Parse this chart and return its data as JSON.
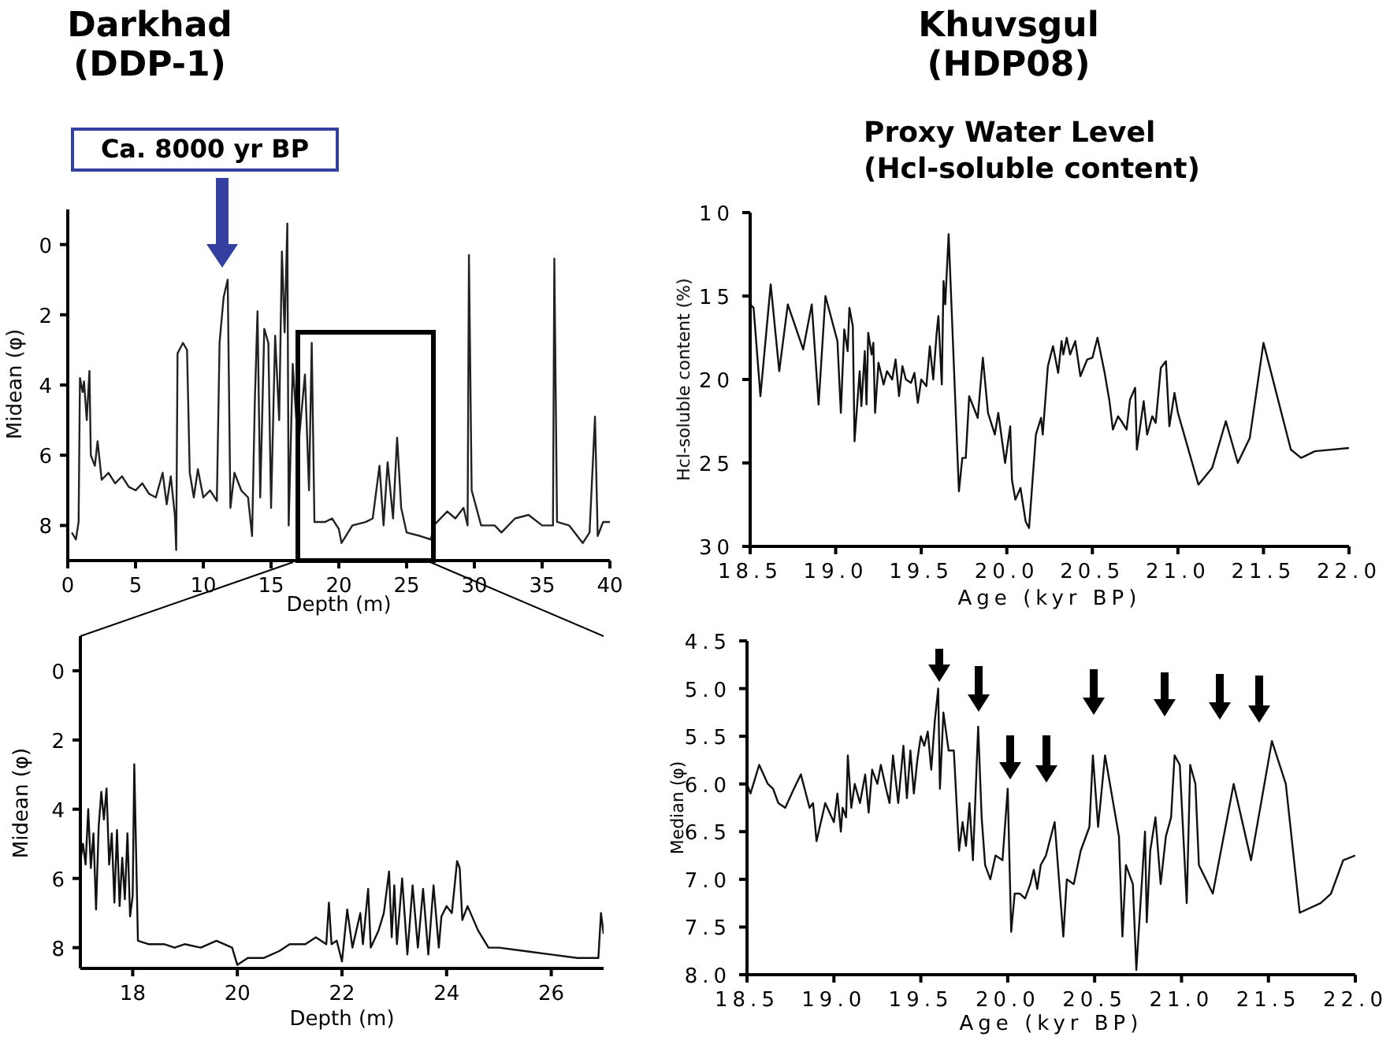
{
  "chart_data": [
    {
      "type": "line",
      "title": "Darkhad\n(DDP-1)",
      "xlabel": "Depth (m)",
      "ylabel": "Midean (φ)",
      "annotations": [
        "Ca. 8000 yr BP"
      ],
      "xlim": [
        0,
        40
      ],
      "xticks": [
        0,
        5,
        10,
        15,
        20,
        25,
        30,
        35,
        40
      ],
      "ylim": [
        9,
        -1
      ],
      "yticks": [
        0,
        2,
        4,
        6,
        8
      ],
      "color": "#222222",
      "x": [
        0.3,
        0.6,
        0.8,
        0.9,
        1.1,
        1.2,
        1.4,
        1.6,
        1.7,
        2.0,
        2.2,
        2.5,
        3,
        3.5,
        4,
        4.5,
        5,
        5.5,
        6,
        6.5,
        7,
        7.3,
        7.6,
        7.9,
        8.0,
        8.1,
        8.5,
        8.8,
        9.0,
        9.3,
        9.6,
        10,
        10.5,
        11,
        11.2,
        11.5,
        11.8,
        12.0,
        12.3,
        12.8,
        13.3,
        13.6,
        13.8,
        14.0,
        14.2,
        14.5,
        14.8,
        15.0,
        15.3,
        15.6,
        15.8,
        16.0,
        16.2,
        16.3,
        16.6,
        17.0,
        17.5,
        17.8,
        18.0,
        18.2,
        19,
        19.5,
        20,
        20.2,
        21,
        22,
        22.5,
        23,
        23.3,
        23.6,
        24,
        24.3,
        24.6,
        25,
        26,
        26.8,
        27,
        28,
        28.6,
        29.2,
        29.5,
        29.6,
        29.8,
        30.5,
        31.5,
        32,
        33,
        34,
        35,
        35.8,
        35.9,
        36.1,
        37,
        38,
        38.5,
        38.9,
        39.1,
        39.5,
        40
      ],
      "values": [
        8.2,
        8.4,
        7.9,
        3.8,
        4.2,
        3.9,
        5.0,
        3.6,
        6.0,
        6.3,
        5.6,
        6.7,
        6.5,
        6.8,
        6.6,
        6.9,
        7.0,
        6.8,
        7.1,
        7.2,
        6.5,
        7.4,
        6.6,
        7.7,
        8.7,
        3.1,
        2.8,
        3.0,
        6.5,
        7.2,
        6.4,
        7.2,
        7.0,
        7.3,
        2.8,
        1.5,
        1.0,
        7.5,
        6.5,
        7.0,
        7.2,
        8.3,
        4.5,
        1.9,
        7.2,
        2.4,
        2.8,
        7.5,
        2.6,
        5.0,
        0.2,
        2.5,
        -0.6,
        8.0,
        3.4,
        5.8,
        3.7,
        7.0,
        2.8,
        7.9,
        7.9,
        7.8,
        8.1,
        8.5,
        8.0,
        7.9,
        7.8,
        6.3,
        8.0,
        6.2,
        7.8,
        5.5,
        7.5,
        8.2,
        8.3,
        8.4,
        8.0,
        7.6,
        7.8,
        7.5,
        8.0,
        0.3,
        7.0,
        8.0,
        8.0,
        8.2,
        7.8,
        7.7,
        8.0,
        8.0,
        0.4,
        7.9,
        8.0,
        8.5,
        8.2,
        4.9,
        8.3,
        7.9,
        7.9
      ]
    },
    {
      "type": "line",
      "title": "Khuvsgul\n(HDP08)",
      "subtitle": "Proxy Water Level\n(Hcl-soluble content)",
      "xlabel": "Age (kyr BP)",
      "ylabel": "Hcl-soluble content (%)",
      "xlim": [
        18.5,
        22
      ],
      "xticks": [
        {
          "value": 18.5,
          "label": "18.5"
        },
        {
          "value": 19,
          "label": "19.0"
        },
        {
          "value": 19.5,
          "label": "19.5"
        },
        {
          "value": 20,
          "label": "20.0"
        },
        {
          "value": 20.5,
          "label": "20.5"
        },
        {
          "value": 21,
          "label": "21.0"
        },
        {
          "value": 21.5,
          "label": "21.5"
        },
        {
          "value": 22,
          "label": "22.0"
        }
      ],
      "ylim": [
        30,
        10
      ],
      "yticks": [
        10,
        15,
        20,
        25,
        30
      ],
      "color": "#111111",
      "x": [
        18.5,
        18.52,
        18.56,
        18.62,
        18.67,
        18.72,
        18.81,
        18.86,
        18.9,
        18.94,
        19.01,
        19.03,
        19.05,
        19.07,
        19.08,
        19.1,
        19.11,
        19.14,
        19.15,
        19.17,
        19.18,
        19.19,
        19.21,
        19.22,
        19.23,
        19.25,
        19.28,
        19.3,
        19.33,
        19.35,
        19.37,
        19.39,
        19.41,
        19.44,
        19.46,
        19.48,
        19.5,
        19.53,
        19.55,
        19.57,
        19.59,
        19.6,
        19.62,
        19.63,
        19.64,
        19.66,
        19.72,
        19.74,
        19.76,
        19.78,
        19.83,
        19.86,
        19.89,
        19.93,
        19.95,
        19.99,
        20.02,
        20.03,
        20.05,
        20.08,
        20.11,
        20.13,
        20.17,
        20.2,
        20.21,
        20.24,
        20.27,
        20.3,
        20.32,
        20.33,
        20.35,
        20.37,
        20.4,
        20.43,
        20.47,
        20.5,
        20.53,
        20.57,
        20.6,
        20.62,
        20.65,
        20.67,
        20.7,
        20.72,
        20.75,
        20.76,
        20.8,
        20.82,
        20.85,
        20.87,
        20.9,
        20.93,
        20.95,
        20.98,
        21.0,
        21.12,
        21.2,
        21.28,
        21.35,
        21.42,
        21.5,
        21.66,
        21.72,
        21.8,
        22.0
      ],
      "values": [
        15.5,
        15.7,
        21.0,
        14.3,
        19.5,
        15.5,
        18.2,
        15.5,
        21.5,
        15.0,
        17.7,
        22.0,
        17.0,
        18.3,
        15.7,
        16.8,
        23.7,
        19.5,
        21.6,
        18.3,
        21.5,
        17.2,
        18.5,
        17.8,
        22.0,
        19.0,
        20.3,
        19.5,
        20.0,
        18.8,
        21.0,
        19.2,
        20.0,
        20.2,
        19.6,
        21.4,
        20.0,
        20.4,
        18.0,
        20.0,
        17.2,
        16.2,
        20.3,
        14.1,
        15.5,
        11.3,
        26.7,
        24.7,
        24.7,
        21.0,
        22.3,
        18.7,
        22.0,
        23.3,
        22.0,
        25.0,
        22.8,
        26.0,
        27.2,
        26.5,
        28.5,
        28.9,
        23.3,
        22.3,
        23.3,
        19.2,
        18.0,
        19.6,
        17.7,
        18.5,
        17.5,
        18.5,
        17.7,
        19.8,
        18.8,
        18.7,
        17.5,
        19.5,
        21.3,
        23.0,
        22.2,
        22.5,
        23.0,
        21.2,
        20.5,
        24.2,
        21.3,
        23.3,
        22.2,
        22.6,
        19.3,
        18.9,
        22.8,
        20.8,
        22.0,
        26.3,
        25.3,
        22.5,
        25.0,
        23.5,
        17.8,
        24.2,
        24.7,
        24.3,
        24.1
      ]
    },
    {
      "type": "line",
      "xlabel": "Depth (m)",
      "ylabel": "Midean (φ)",
      "xlim": [
        17,
        27
      ],
      "xticks": [
        18,
        20,
        22,
        24,
        26
      ],
      "ylim": [
        8.6,
        -1
      ],
      "yticks": [
        0,
        2,
        4,
        6,
        8
      ],
      "color": "#111111",
      "x": [
        17.0,
        17.05,
        17.1,
        17.15,
        17.2,
        17.25,
        17.3,
        17.35,
        17.4,
        17.45,
        17.5,
        17.55,
        17.6,
        17.65,
        17.7,
        17.75,
        17.8,
        17.85,
        17.9,
        17.95,
        18.0,
        18.03,
        18.1,
        18.3,
        18.6,
        18.8,
        19.0,
        19.3,
        19.6,
        19.9,
        20.0,
        20.2,
        20.5,
        20.8,
        21.0,
        21.3,
        21.5,
        21.7,
        21.75,
        21.8,
        21.9,
        22.0,
        22.1,
        22.2,
        22.35,
        22.4,
        22.5,
        22.55,
        22.7,
        22.8,
        22.9,
        22.95,
        23.0,
        23.05,
        23.15,
        23.25,
        23.35,
        23.45,
        23.55,
        23.65,
        23.75,
        23.85,
        23.9,
        24.0,
        24.1,
        24.2,
        24.25,
        24.3,
        24.4,
        24.6,
        24.8,
        25.0,
        25.5,
        26.0,
        26.5,
        26.9,
        26.95,
        27.0
      ],
      "values": [
        5.5,
        5.0,
        5.6,
        4.0,
        5.7,
        4.7,
        6.9,
        4.5,
        3.5,
        4.3,
        3.4,
        5.6,
        4.7,
        6.7,
        4.6,
        6.8,
        5.4,
        6.6,
        4.7,
        7.1,
        6.5,
        2.7,
        7.8,
        7.9,
        7.9,
        8.0,
        7.9,
        8.0,
        7.8,
        8.0,
        8.5,
        8.3,
        8.3,
        8.1,
        7.9,
        7.9,
        7.7,
        7.9,
        6.7,
        7.9,
        7.8,
        8.4,
        6.9,
        8.0,
        7.0,
        7.9,
        6.3,
        8.0,
        7.5,
        7.0,
        5.8,
        7.7,
        6.2,
        7.9,
        6.0,
        8.2,
        6.2,
        8.0,
        6.3,
        8.2,
        6.2,
        8.0,
        7.1,
        6.8,
        7.0,
        5.5,
        5.7,
        7.2,
        6.8,
        7.5,
        8.0,
        8.0,
        8.1,
        8.2,
        8.3,
        8.3,
        7.0,
        7.6
      ]
    },
    {
      "type": "line",
      "xlabel": "Age (kyr BP)",
      "ylabel": "Median (φ)",
      "xlim": [
        18.5,
        22
      ],
      "xticks": [
        {
          "value": 18.5,
          "label": "18.5"
        },
        {
          "value": 19,
          "label": "19.0"
        },
        {
          "value": 19.5,
          "label": "19.5"
        },
        {
          "value": 20,
          "label": "20.0"
        },
        {
          "value": 20.5,
          "label": "20.5"
        },
        {
          "value": 21,
          "label": "21.0"
        },
        {
          "value": 21.5,
          "label": "21.5"
        },
        {
          "value": 22,
          "label": "22.0"
        }
      ],
      "ylim": [
        8,
        4.5
      ],
      "yticks": [
        4.5,
        {
          "value": 5,
          "label": "5.0"
        },
        5.5,
        {
          "value": 6,
          "label": "6.0"
        },
        6.5,
        {
          "value": 7,
          "label": "7.0"
        },
        7.5,
        {
          "value": 8,
          "label": "8.0"
        }
      ],
      "color": "#111111",
      "x": [
        18.5,
        18.52,
        18.57,
        18.62,
        18.65,
        18.68,
        18.72,
        18.77,
        18.81,
        18.86,
        18.88,
        18.9,
        18.95,
        19.0,
        19.02,
        19.04,
        19.05,
        19.07,
        19.08,
        19.1,
        19.12,
        19.15,
        19.18,
        19.2,
        19.22,
        19.25,
        19.27,
        19.3,
        19.32,
        19.34,
        19.37,
        19.4,
        19.42,
        19.44,
        19.46,
        19.48,
        19.5,
        19.52,
        19.54,
        19.56,
        19.58,
        19.6,
        19.61,
        19.63,
        19.66,
        19.69,
        19.72,
        19.74,
        19.76,
        19.78,
        19.8,
        19.83,
        19.85,
        19.87,
        19.9,
        19.93,
        19.97,
        20.0,
        20.02,
        20.04,
        20.07,
        20.1,
        20.13,
        20.15,
        20.17,
        20.19,
        20.22,
        20.27,
        20.32,
        20.34,
        20.38,
        20.42,
        20.47,
        20.49,
        20.52,
        20.56,
        20.64,
        20.66,
        20.68,
        20.72,
        20.74,
        20.79,
        20.8,
        20.82,
        20.85,
        20.88,
        20.91,
        20.94,
        20.96,
        20.99,
        21.03,
        21.05,
        21.08,
        21.1,
        21.18,
        21.3,
        21.4,
        21.52,
        21.6,
        21.68,
        21.8,
        21.86,
        21.93,
        22.0
      ],
      "values": [
        6.0,
        6.1,
        5.8,
        6.0,
        6.05,
        6.2,
        6.25,
        6.05,
        5.9,
        6.25,
        6.2,
        6.6,
        6.2,
        6.4,
        6.1,
        6.5,
        6.25,
        6.35,
        5.7,
        6.25,
        6.0,
        6.2,
        5.9,
        6.3,
        5.85,
        6.0,
        5.8,
        6.05,
        6.2,
        5.7,
        6.2,
        5.6,
        6.15,
        5.65,
        6.1,
        5.75,
        5.5,
        5.6,
        5.45,
        5.85,
        5.35,
        5.0,
        6.05,
        5.25,
        5.65,
        5.65,
        6.7,
        6.4,
        6.65,
        6.2,
        6.8,
        5.4,
        6.35,
        6.85,
        7.0,
        6.75,
        6.8,
        6.05,
        7.55,
        7.15,
        7.15,
        7.2,
        7.05,
        6.9,
        7.1,
        6.85,
        6.75,
        6.4,
        7.6,
        7.0,
        7.05,
        6.7,
        6.45,
        5.7,
        6.45,
        5.7,
        6.55,
        7.6,
        6.85,
        7.05,
        7.95,
        6.5,
        7.45,
        6.7,
        6.35,
        7.05,
        6.55,
        6.35,
        5.7,
        5.8,
        7.25,
        5.8,
        6.0,
        6.85,
        7.15,
        6.0,
        6.8,
        5.55,
        6.0,
        7.35,
        7.25,
        7.15,
        6.8,
        6.75
      ]
    }
  ]
}
